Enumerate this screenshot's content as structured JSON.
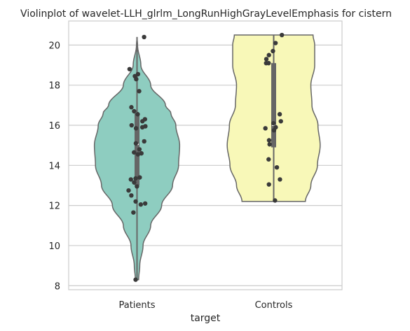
{
  "chart_data": {
    "type": "violin",
    "title": "Violinplot of wavelet-LLH_glrlm_LongRunHighGrayLevelEmphasis for cistern",
    "xlabel": "target",
    "ylabel": "",
    "categories": [
      "Patients",
      "Controls"
    ],
    "ylim": [
      7.8,
      21.2
    ],
    "yticks": [
      8,
      10,
      12,
      14,
      16,
      18,
      20
    ],
    "grid": "horizontal",
    "colors": {
      "Patients": "#8ecdc0",
      "Controls": "#f8f8b8",
      "outline": "#666666",
      "box": "#666666",
      "point": "#3a3a3a"
    },
    "violins": [
      {
        "name": "Patients",
        "range": [
          8.3,
          20.4
        ],
        "profile": [
          [
            8.3,
            0.03
          ],
          [
            9.0,
            0.05
          ],
          [
            10.0,
            0.11
          ],
          [
            11.0,
            0.25
          ],
          [
            12.0,
            0.45
          ],
          [
            13.0,
            0.65
          ],
          [
            14.0,
            0.76
          ],
          [
            15.0,
            0.78
          ],
          [
            16.0,
            0.71
          ],
          [
            16.6,
            0.62
          ],
          [
            17.0,
            0.52
          ],
          [
            18.0,
            0.25
          ],
          [
            19.0,
            0.07
          ],
          [
            20.0,
            0.01
          ],
          [
            20.4,
            0.0
          ]
        ],
        "median": 15.05,
        "q1": 13.0,
        "q3": 16.6,
        "whisker": [
          8.3,
          20.4
        ],
        "points": [
          20.4,
          18.8,
          18.55,
          18.45,
          18.3,
          17.7,
          16.9,
          16.7,
          16.55,
          16.3,
          16.2,
          16.0,
          15.95,
          15.9,
          15.85,
          15.2,
          15.1,
          14.8,
          14.65,
          14.6,
          14.55,
          13.4,
          13.35,
          13.3,
          13.15,
          12.95,
          12.75,
          12.5,
          12.2,
          12.1,
          12.05,
          11.65,
          8.3
        ]
      },
      {
        "name": "Controls",
        "range": [
          12.2,
          20.5
        ],
        "profile": [
          [
            12.2,
            0.58
          ],
          [
            13.0,
            0.68
          ],
          [
            14.0,
            0.8
          ],
          [
            15.0,
            0.85
          ],
          [
            16.0,
            0.81
          ],
          [
            17.0,
            0.7
          ],
          [
            18.0,
            0.68
          ],
          [
            19.0,
            0.75
          ],
          [
            20.0,
            0.75
          ],
          [
            20.5,
            0.72
          ]
        ],
        "median": 16.0,
        "q1": 14.9,
        "q3": 19.1,
        "whisker": [
          12.2,
          20.5
        ],
        "points": [
          20.5,
          20.1,
          19.7,
          19.5,
          19.3,
          19.1,
          19.1,
          16.55,
          16.2,
          16.1,
          15.9,
          15.85,
          15.75,
          15.25,
          15.05,
          14.3,
          13.9,
          13.3,
          13.05,
          12.25
        ]
      }
    ]
  }
}
